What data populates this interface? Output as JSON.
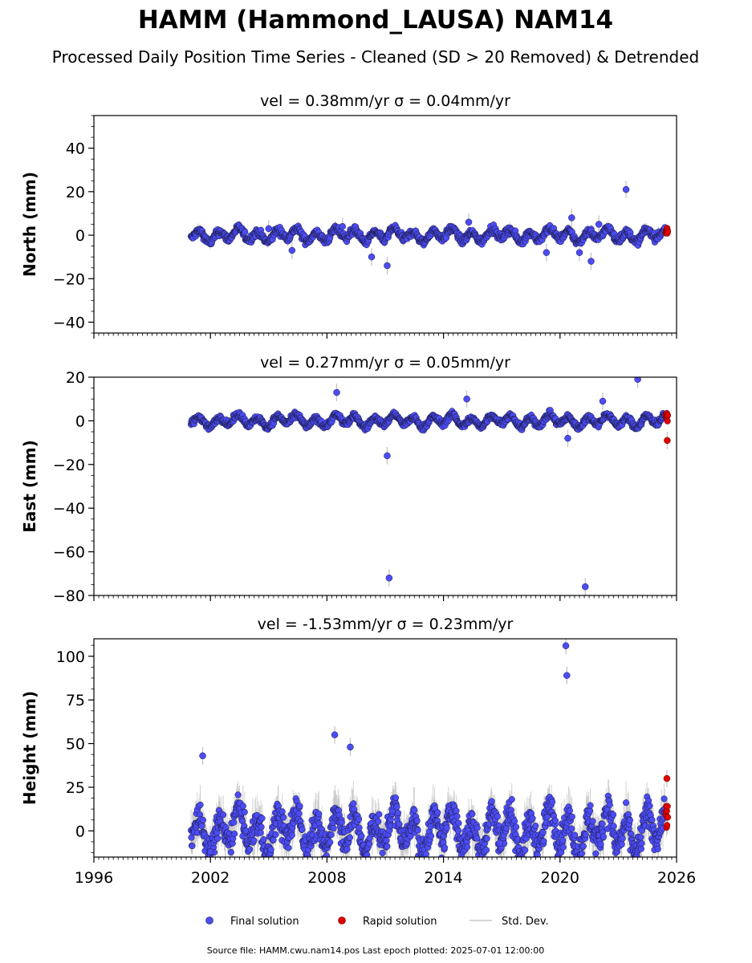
{
  "title": "HAMM (Hammond_LAUSA) NAM14",
  "subtitle": "Processed Daily Position Time Series - Cleaned (SD > 20 Removed) & Detrended",
  "footer": "Source file: HAMM.cwu.nam14.pos  Last epoch plotted: 2025-07-01 12:00:00",
  "legend": {
    "final": "Final solution",
    "rapid": "Rapid solution",
    "std": "Std. Dev."
  },
  "colors": {
    "final": "#4c4cf5",
    "final_edge": "#1a1a40",
    "rapid": "#e00000",
    "std": "#c0c0c0"
  },
  "chart_data": [
    {
      "type": "scatter",
      "title": "vel = 0.38mm/yr   σ = 0.04mm/yr",
      "ylabel": "North (mm)",
      "xlabel": "",
      "xlim": [
        1996,
        2026
      ],
      "ylim": [
        -45,
        55
      ],
      "yticks": [
        -40,
        -20,
        0,
        20,
        40
      ],
      "xticks": [
        1996,
        2002,
        2008,
        2014,
        2020,
        2026
      ],
      "show_xtick_labels": false,
      "grid": false,
      "series": [
        {
          "name": "Final solution",
          "role": "final",
          "start": 2001.0,
          "end": 2025.4,
          "amp": 2.2,
          "noise": 1.2,
          "x": [
            2005.0,
            2006.2,
            2008.8,
            2010.3,
            2011.1,
            2015.3,
            2019.3,
            2020.6,
            2021.0,
            2021.6,
            2022.0,
            2023.4
          ],
          "y": [
            3,
            -7,
            4,
            -10,
            -14,
            6,
            -8,
            8,
            -8,
            -12,
            5,
            21
          ]
        },
        {
          "name": "Rapid solution",
          "role": "rapid",
          "start": 2025.45,
          "end": 2025.55,
          "amp": 1.5,
          "noise": 1.0,
          "x": [],
          "y": []
        }
      ]
    },
    {
      "type": "scatter",
      "title": "vel = 0.27mm/yr   σ = 0.05mm/yr",
      "ylabel": "East (mm)",
      "xlabel": "",
      "xlim": [
        1996,
        2026
      ],
      "ylim": [
        -80,
        20
      ],
      "yticks": [
        -80,
        -60,
        -40,
        -20,
        0,
        20
      ],
      "xticks": [
        1996,
        2002,
        2008,
        2014,
        2020,
        2026
      ],
      "show_xtick_labels": false,
      "grid": false,
      "series": [
        {
          "name": "Final solution",
          "role": "final",
          "start": 2001.0,
          "end": 2025.4,
          "amp": 2.0,
          "noise": 1.0,
          "x": [
            2008.5,
            2011.1,
            2011.2,
            2015.2,
            2020.4,
            2021.3,
            2022.2,
            2024.0
          ],
          "y": [
            13,
            -16,
            -72,
            10,
            -8,
            -76,
            9,
            19
          ]
        },
        {
          "name": "Rapid solution",
          "role": "rapid",
          "start": 2025.45,
          "end": 2025.55,
          "amp": 2.0,
          "noise": 1.2,
          "x": [
            2025.52
          ],
          "y": [
            -9
          ]
        }
      ]
    },
    {
      "type": "scatter",
      "title": "vel = -1.53mm/yr   σ = 0.23mm/yr",
      "ylabel": "Height (mm)",
      "xlabel": "",
      "xlim": [
        1996,
        2026
      ],
      "ylim": [
        -15,
        110
      ],
      "yticks": [
        0,
        25,
        50,
        75,
        100
      ],
      "xticks": [
        1996,
        2002,
        2008,
        2014,
        2020,
        2026
      ],
      "show_xtick_labels": true,
      "grid": false,
      "series": [
        {
          "name": "Final solution",
          "role": "final",
          "start": 2001.0,
          "end": 2025.4,
          "amp": 9.0,
          "noise": 6.0,
          "x": [
            2002.0,
            2008.4,
            2009.2,
            2016.2,
            2016.9,
            2020.3,
            2020.35,
            2001.6
          ],
          "y": [
            -12,
            55,
            48,
            -11,
            -7,
            106,
            89,
            43
          ]
        },
        {
          "name": "Rapid solution",
          "role": "rapid",
          "start": 2025.45,
          "end": 2025.55,
          "amp": 8.0,
          "noise": 5.0,
          "x": [
            2025.5
          ],
          "y": [
            30
          ]
        }
      ]
    }
  ]
}
